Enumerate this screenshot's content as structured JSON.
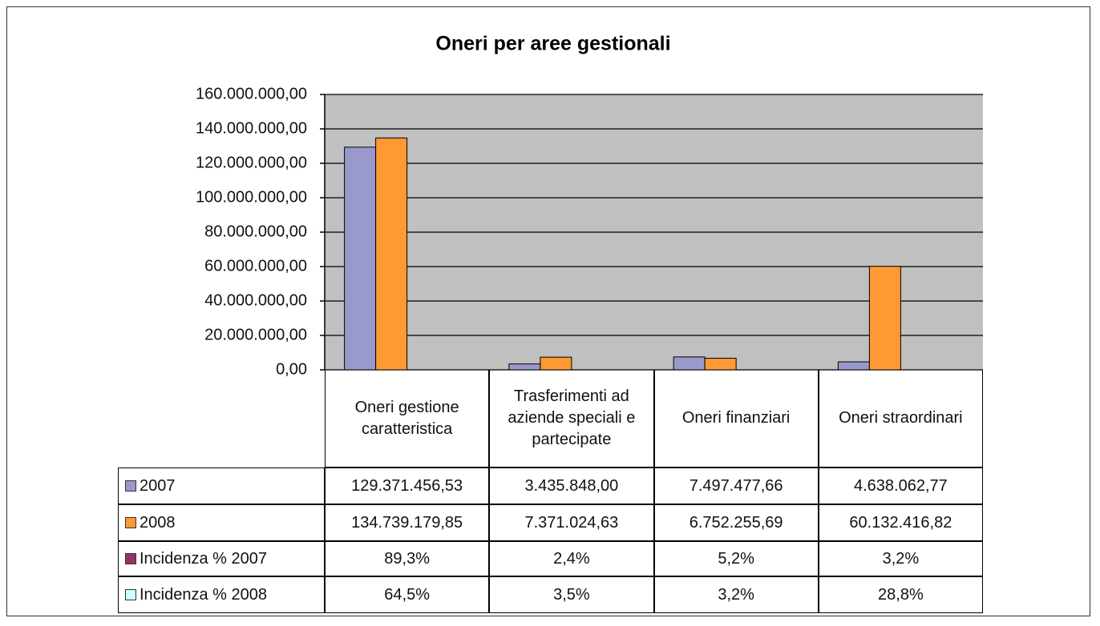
{
  "chart_data": {
    "type": "bar",
    "title": "Oneri per aree gestionali",
    "categories": [
      "Oneri gestione caratteristica",
      "Trasferimenti ad aziende speciali e partecipate",
      "Oneri finanziari",
      "Oneri straordinari"
    ],
    "series": [
      {
        "name": "2007",
        "color": "#9999cc",
        "values": [
          129371456.53,
          3435848.0,
          7497477.66,
          4638062.77
        ],
        "value_labels": [
          "129.371.456,53",
          "3.435.848,00",
          "7.497.477,66",
          "4.638.062,77"
        ]
      },
      {
        "name": "2008",
        "color": "#ff9933",
        "values": [
          134739179.85,
          7371024.63,
          6752255.69,
          60132416.82
        ],
        "value_labels": [
          "134.739.179,85",
          "7.371.024,63",
          "6.752.255,69",
          "60.132.416,82"
        ]
      },
      {
        "name": "Incidenza % 2007",
        "color": "#993366",
        "values": [
          89.3,
          2.4,
          5.2,
          3.2
        ],
        "value_labels": [
          "89,3%",
          "2,4%",
          "5,2%",
          "3,2%"
        ]
      },
      {
        "name": "Incidenza % 2008",
        "color": "#ccffff",
        "values": [
          64.5,
          3.5,
          3.2,
          28.8
        ],
        "value_labels": [
          "64,5%",
          "3,5%",
          "3,2%",
          "28,8%"
        ]
      }
    ],
    "ylim": [
      0,
      160000000
    ],
    "yticks": [
      {
        "value": 0,
        "label": "0,00"
      },
      {
        "value": 20000000,
        "label": "20.000.000,00"
      },
      {
        "value": 40000000,
        "label": "40.000.000,00"
      },
      {
        "value": 60000000,
        "label": "60.000.000,00"
      },
      {
        "value": 80000000,
        "label": "80.000.000,00"
      },
      {
        "value": 100000000,
        "label": "100.000.000,00"
      },
      {
        "value": 120000000,
        "label": "120.000.000,00"
      },
      {
        "value": 140000000,
        "label": "140.000.000,00"
      },
      {
        "value": 160000000,
        "label": "160.000.000,00"
      }
    ],
    "grid": true
  }
}
